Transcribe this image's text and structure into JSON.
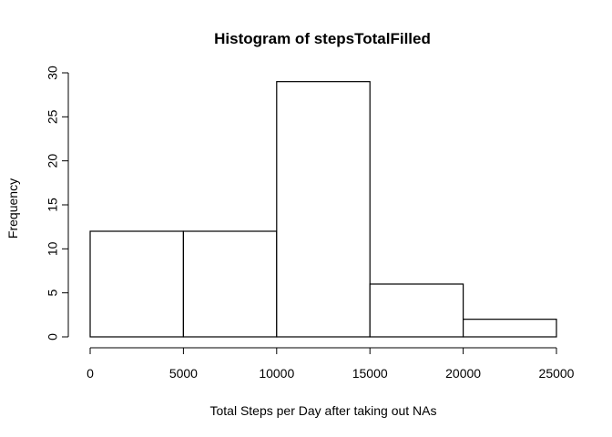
{
  "chart_data": {
    "type": "bar",
    "title": "Histogram of stepsTotalFilled",
    "xlabel": "Total Steps per Day after taking out NAs",
    "ylabel": "Frequency",
    "bins": [
      {
        "from": 0,
        "to": 5000,
        "count": 12
      },
      {
        "from": 5000,
        "to": 10000,
        "count": 12
      },
      {
        "from": 10000,
        "to": 15000,
        "count": 29
      },
      {
        "from": 15000,
        "to": 20000,
        "count": 6
      },
      {
        "from": 20000,
        "to": 25000,
        "count": 2
      }
    ],
    "xlim": [
      0,
      25000
    ],
    "ylim": [
      0,
      30
    ],
    "xticks": [
      "0",
      "5000",
      "10000",
      "15000",
      "20000",
      "25000"
    ],
    "yticks": [
      "0",
      "5",
      "10",
      "15",
      "20",
      "25",
      "30"
    ],
    "grid": false,
    "colors": {
      "bar_fill": "#ffffff",
      "bar_stroke": "#000000"
    }
  }
}
